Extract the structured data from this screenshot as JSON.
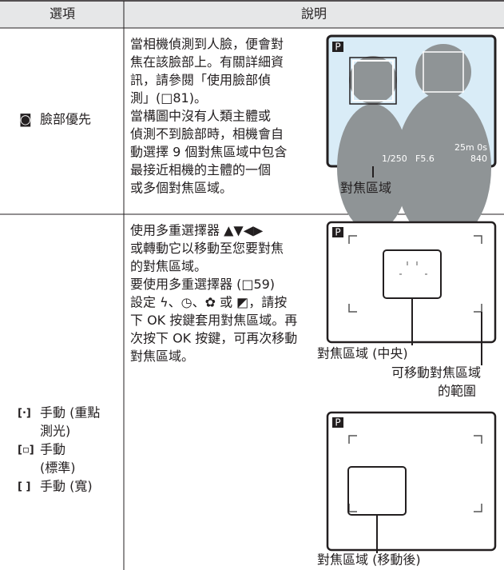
{
  "header": {
    "option": "選項",
    "description": "說明"
  },
  "rows": [
    {
      "options": [
        {
          "icon": "◙",
          "lines": [
            "臉部優先"
          ]
        }
      ],
      "description": [
        "當相機偵測到人臉，便會對",
        "焦在該臉部上。有關詳細資",
        "訊，請參閱「使用臉部偵",
        "測」(□81)。",
        "當構圖中沒有人類主體或",
        "偵測不到臉部時，相機會自",
        "動選擇 9 個對焦區域中包含",
        "最接近相機的主體的一個",
        "或多個對焦區域。"
      ],
      "figures": [
        {
          "mode": "P",
          "shutter": "1/250",
          "aperture": "F5.6",
          "time": "25m 0s",
          "shots": "840",
          "captions": [
            "對焦區域"
          ]
        }
      ]
    },
    {
      "options": [
        {
          "icon": "[·]",
          "lines": [
            "手動 (重點",
            "測光)"
          ]
        },
        {
          "icon": "[▫]",
          "lines": [
            "手動",
            "(標準)"
          ]
        },
        {
          "icon": "[ ]",
          "lines": [
            "手動 (寬)"
          ]
        }
      ],
      "description": [
        "使用多重選擇器 ▲▼◀▶",
        "或轉動它以移動至您要對焦",
        "的對焦區域。",
        "要使用多重選擇器 (□59)",
        "設定 ϟ、◷、✿ 或 ◩，請按",
        "下 OK 按鍵套用對焦區域。再",
        "次按下 OK 按鍵，可再次移動",
        "對焦區域。"
      ],
      "figures": [
        {
          "mode": "P",
          "captions": [
            "對焦區域 (中央)",
            "可移動對焦區域",
            "的範圍"
          ]
        },
        {
          "mode": "P",
          "captions": [
            "對焦區域 (移動後)"
          ]
        }
      ]
    }
  ]
}
